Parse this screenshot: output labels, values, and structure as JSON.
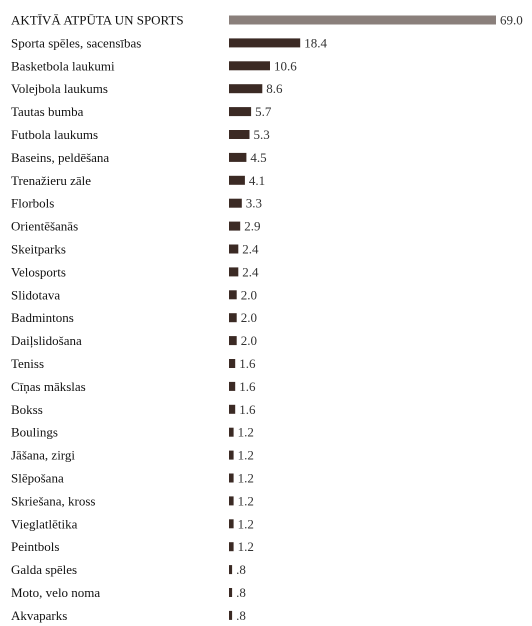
{
  "chart_data": {
    "type": "bar",
    "orientation": "horizontal",
    "xlim": [
      0,
      69
    ],
    "grid": false,
    "legend": "none",
    "colors": {
      "total": "#8a7f7b",
      "item": "#3b2a24"
    },
    "categories": [
      "AKTĪVĀ ATPŪTA UN SPORTS",
      "Sporta spēles, sacensības",
      "Basketbola laukumi",
      "Volejbola laukums",
      "Tautas bumba",
      "Futbola laukums",
      "Baseins, peldēšana",
      "Trenažieru zāle",
      "Florbols",
      "Orientēšanās",
      "Skeitparks",
      "Velosports",
      "Slidotava",
      "Badmintons",
      "Daiļslidošana",
      "Teniss",
      "Cīņas mākslas",
      "Bokss",
      "Boulings",
      "Jāšana, zirgi",
      "Slēpošana",
      "Skriešana, kross",
      "Vieglatlētika",
      "Peintbols",
      "Galda spēles",
      "Moto, velo noma",
      "Akvaparks"
    ],
    "values": [
      69.0,
      18.4,
      10.6,
      8.6,
      5.7,
      5.3,
      4.5,
      4.1,
      3.3,
      2.9,
      2.4,
      2.4,
      2.0,
      2.0,
      2.0,
      1.6,
      1.6,
      1.6,
      1.2,
      1.2,
      1.2,
      1.2,
      1.2,
      1.2,
      0.8,
      0.8,
      0.8
    ],
    "value_labels": [
      "69.0",
      "18.4",
      "10.6",
      "8.6",
      "5.7",
      "5.3",
      "4.5",
      "4.1",
      "3.3",
      "2.9",
      "2.4",
      "2.4",
      "2.0",
      "2.0",
      "2.0",
      "1.6",
      "1.6",
      "1.6",
      "1.2",
      "1.2",
      "1.2",
      "1.2",
      "1.2",
      "1.2",
      ".8",
      ".8",
      ".8"
    ]
  }
}
